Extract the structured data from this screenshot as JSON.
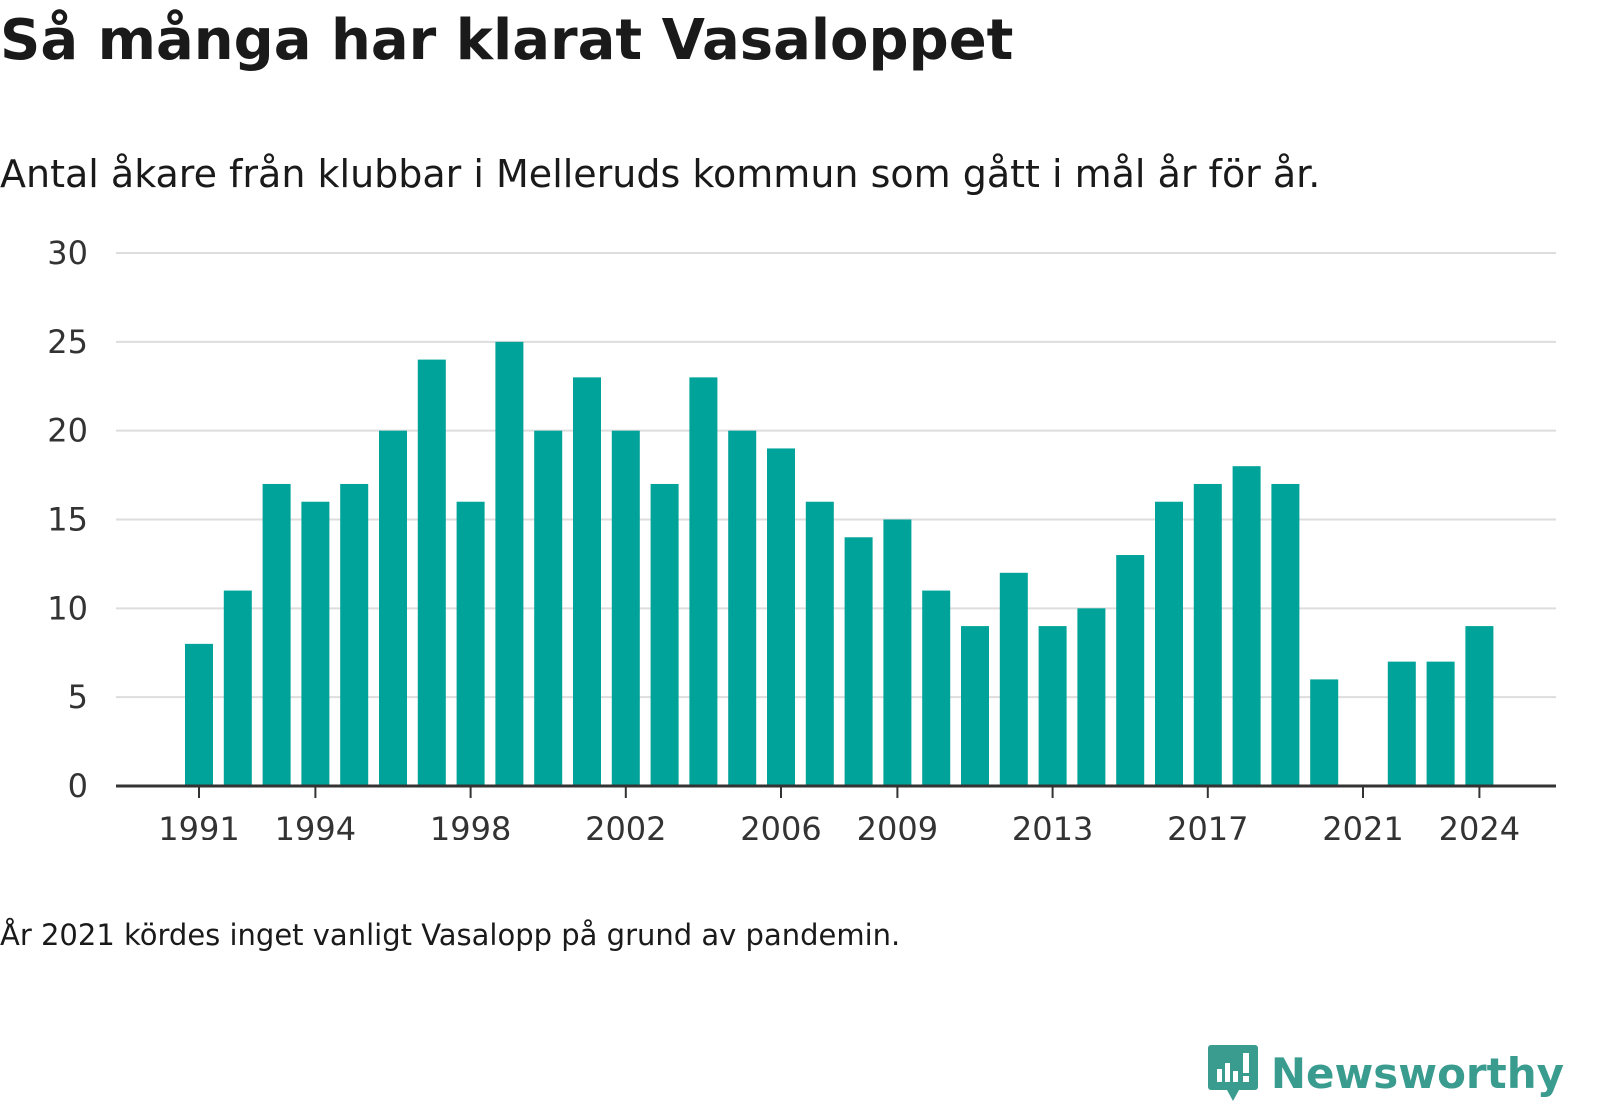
{
  "title": "Så många har klarat Vasaloppet",
  "subtitle": "Antal åkare från klubbar i Melleruds kommun som gått i mål år för år.",
  "note": "År 2021 kördes inget vanligt Vasalopp på grund av pandemin.",
  "brand": {
    "name": "Newsworthy",
    "icon": "newsworthy-logo-icon",
    "color": "#3a9b8f"
  },
  "colors": {
    "bar": "#00a39a",
    "grid": "#dddddd",
    "axis": "#333333"
  },
  "chart_data": {
    "type": "bar",
    "title": "Så många har klarat Vasaloppet",
    "subtitle": "Antal åkare från klubbar i Melleruds kommun som gått i mål år för år.",
    "xlabel": "",
    "ylabel": "",
    "ylim": [
      0,
      30
    ],
    "yticks": [
      0,
      5,
      10,
      15,
      20,
      25,
      30
    ],
    "xticks": [
      "1991",
      "1994",
      "1998",
      "2002",
      "2006",
      "2009",
      "2013",
      "2017",
      "2021",
      "2024"
    ],
    "grid": true,
    "categories": [
      "1991",
      "1992",
      "1993",
      "1994",
      "1995",
      "1996",
      "1997",
      "1998",
      "1999",
      "2000",
      "2001",
      "2002",
      "2003",
      "2004",
      "2005",
      "2006",
      "2007",
      "2008",
      "2009",
      "2010",
      "2011",
      "2012",
      "2013",
      "2014",
      "2015",
      "2016",
      "2017",
      "2018",
      "2019",
      "2020",
      "2021",
      "2022",
      "2023",
      "2024"
    ],
    "values": [
      8,
      11,
      17,
      16,
      17,
      20,
      24,
      16,
      25,
      20,
      23,
      20,
      17,
      23,
      20,
      19,
      16,
      14,
      15,
      11,
      9,
      12,
      9,
      10,
      13,
      16,
      17,
      18,
      17,
      6,
      0,
      7,
      7,
      9
    ]
  }
}
